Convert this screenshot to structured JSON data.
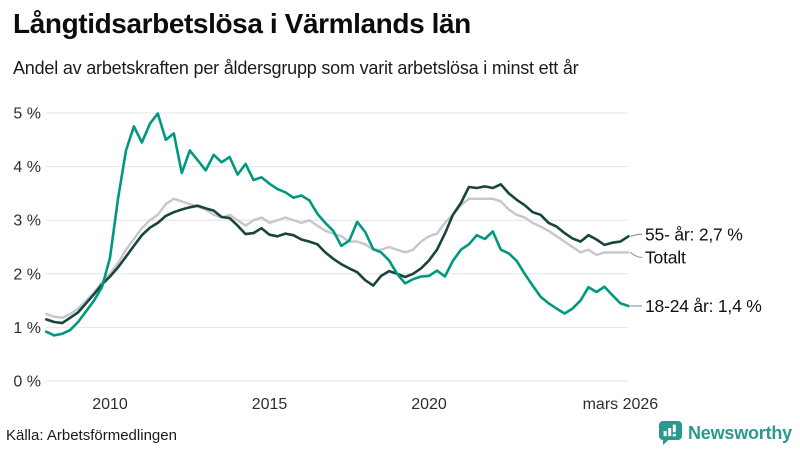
{
  "header": {
    "title": "Långtidsarbetslösa i Värmlands län",
    "subtitle": "Andel av arbetskraften per åldersgrupp som varit arbetslösa i minst ett år"
  },
  "footer": {
    "source": "Källa: Arbetsförmedlingen",
    "brand": "Newsworthy"
  },
  "colors": {
    "teal_line": "#00997f",
    "dark_line": "#1a443c",
    "total_line": "#c7c5d2",
    "grid": "#e4e4e4",
    "brand_teal": "#2b998e",
    "text": "#111111"
  },
  "chart_data": {
    "type": "line",
    "title": "Långtidsarbetslösa i Värmlands län",
    "subtitle": "Andel av arbetskraften per åldersgrupp som varit arbetslösa i minst ett år",
    "source": "Källa: Arbetsförmedlingen",
    "grid": true,
    "legend_position": "end-of-line labels, right side",
    "ylim": [
      0,
      5
    ],
    "ylabel": "",
    "xlabel": "",
    "y_ticks": [
      {
        "label": "0 %",
        "value": 0
      },
      {
        "label": "1 %",
        "value": 1
      },
      {
        "label": "2 %",
        "value": 2
      },
      {
        "label": "3 %",
        "value": 3
      },
      {
        "label": "4 %",
        "value": 4
      },
      {
        "label": "5 %",
        "value": 5
      }
    ],
    "x_ticks": [
      {
        "label": "2010",
        "year": 2010
      },
      {
        "label": "2015",
        "year": 2015
      },
      {
        "label": "2020",
        "year": 2020
      },
      {
        "label": "mars 2026",
        "year": 2026
      }
    ],
    "x_start": 2008.0,
    "x_step": 0.25,
    "x_end": 2026.25,
    "series": [
      {
        "name": "Totalt",
        "end_label": "Totalt",
        "color": "#c7c5d2",
        "width": 2.4,
        "values": [
          1.25,
          1.2,
          1.18,
          1.25,
          1.35,
          1.5,
          1.65,
          1.85,
          2.0,
          2.2,
          2.45,
          2.65,
          2.85,
          3.0,
          3.1,
          3.3,
          3.4,
          3.35,
          3.3,
          3.25,
          3.2,
          3.1,
          3.05,
          3.1,
          3.0,
          2.9,
          3.0,
          3.05,
          2.95,
          3.0,
          3.05,
          3.0,
          2.95,
          3.0,
          2.9,
          2.8,
          2.75,
          2.7,
          2.6,
          2.6,
          2.55,
          2.45,
          2.45,
          2.5,
          2.45,
          2.4,
          2.45,
          2.6,
          2.7,
          2.75,
          2.95,
          3.1,
          3.28,
          3.4,
          3.4,
          3.4,
          3.4,
          3.35,
          3.2,
          3.1,
          3.05,
          2.95,
          2.88,
          2.8,
          2.7,
          2.6,
          2.5,
          2.4,
          2.45,
          2.35,
          2.4,
          2.4,
          2.4,
          2.4
        ]
      },
      {
        "name": "55- år",
        "end_label": "55- år: 2,7 %",
        "end_value_text": "2,7 %",
        "color": "#1a443c",
        "width": 2.6,
        "values": [
          1.15,
          1.1,
          1.08,
          1.18,
          1.28,
          1.45,
          1.62,
          1.8,
          1.95,
          2.12,
          2.32,
          2.52,
          2.72,
          2.86,
          2.95,
          3.08,
          3.15,
          3.2,
          3.24,
          3.27,
          3.22,
          3.18,
          3.06,
          3.04,
          2.9,
          2.74,
          2.76,
          2.85,
          2.73,
          2.7,
          2.75,
          2.72,
          2.64,
          2.6,
          2.55,
          2.4,
          2.28,
          2.18,
          2.1,
          2.03,
          1.88,
          1.78,
          1.96,
          2.05,
          2.0,
          1.94,
          2.0,
          2.1,
          2.25,
          2.45,
          2.75,
          3.1,
          3.32,
          3.62,
          3.6,
          3.63,
          3.6,
          3.67,
          3.5,
          3.38,
          3.28,
          3.15,
          3.1,
          2.95,
          2.88,
          2.76,
          2.66,
          2.6,
          2.72,
          2.64,
          2.54,
          2.58,
          2.6,
          2.7
        ]
      },
      {
        "name": "18-24 år",
        "end_label": "18-24 år: 1,4 %",
        "end_value_text": "1,4 %",
        "color": "#00997f",
        "width": 2.6,
        "values": [
          0.92,
          0.85,
          0.88,
          0.95,
          1.1,
          1.3,
          1.5,
          1.75,
          2.3,
          3.4,
          4.3,
          4.75,
          4.45,
          4.8,
          4.99,
          4.5,
          4.62,
          3.88,
          4.3,
          4.12,
          3.93,
          4.22,
          4.08,
          4.18,
          3.85,
          4.05,
          3.75,
          3.8,
          3.68,
          3.58,
          3.52,
          3.42,
          3.46,
          3.37,
          3.12,
          2.95,
          2.8,
          2.52,
          2.62,
          2.97,
          2.78,
          2.46,
          2.4,
          2.25,
          2.0,
          1.82,
          1.9,
          1.95,
          1.96,
          2.06,
          1.95,
          2.24,
          2.45,
          2.55,
          2.72,
          2.65,
          2.79,
          2.45,
          2.38,
          2.24,
          2.0,
          1.78,
          1.57,
          1.45,
          1.35,
          1.26,
          1.35,
          1.5,
          1.75,
          1.66,
          1.76,
          1.6,
          1.45,
          1.4
        ]
      }
    ]
  }
}
